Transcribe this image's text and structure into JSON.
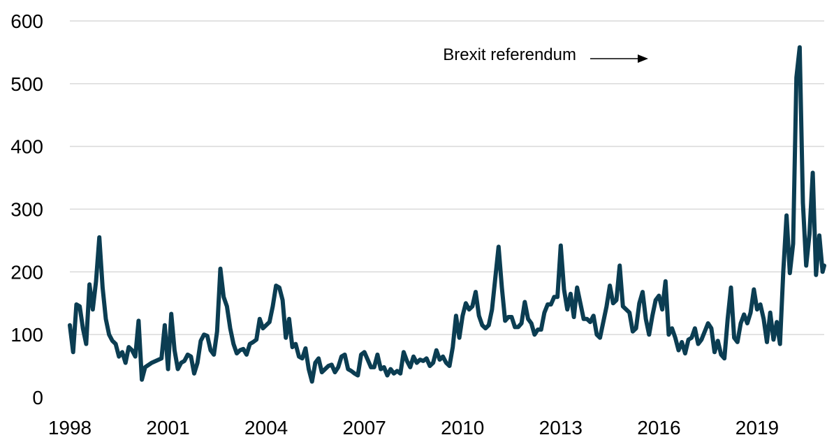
{
  "chart_data": {
    "type": "line",
    "title": "",
    "xlabel": "",
    "ylabel": "",
    "ylim": [
      0,
      600
    ],
    "yticks": [
      0,
      100,
      200,
      300,
      400,
      500,
      600
    ],
    "xlim": [
      1998,
      2021.05
    ],
    "xticks": [
      1998,
      2001,
      2004,
      2007,
      2010,
      2013,
      2016,
      2019
    ],
    "grid": "horizontal",
    "legend": "none",
    "series_color": "#0b3d52",
    "grid_color": "#d9d9d9",
    "annotation": {
      "text": "Brexit referendum",
      "x": 2016.5,
      "y": 545
    },
    "series": [
      {
        "points": [
          [
            1998.0,
            115
          ],
          [
            1998.1,
            72
          ],
          [
            1998.2,
            148
          ],
          [
            1998.3,
            145
          ],
          [
            1998.4,
            110
          ],
          [
            1998.5,
            85
          ],
          [
            1998.6,
            180
          ],
          [
            1998.7,
            140
          ],
          [
            1998.8,
            185
          ],
          [
            1998.9,
            255
          ],
          [
            1999.0,
            175
          ],
          [
            1999.1,
            125
          ],
          [
            1999.2,
            100
          ],
          [
            1999.3,
            90
          ],
          [
            1999.4,
            85
          ],
          [
            1999.5,
            65
          ],
          [
            1999.6,
            72
          ],
          [
            1999.7,
            55
          ],
          [
            1999.8,
            80
          ],
          [
            1999.9,
            75
          ],
          [
            2000.0,
            65
          ],
          [
            2000.1,
            122
          ],
          [
            2000.2,
            28
          ],
          [
            2000.3,
            48
          ],
          [
            2000.5,
            55
          ],
          [
            2000.8,
            62
          ],
          [
            2000.9,
            115
          ],
          [
            2001.0,
            45
          ],
          [
            2001.1,
            133
          ],
          [
            2001.2,
            75
          ],
          [
            2001.3,
            45
          ],
          [
            2001.4,
            55
          ],
          [
            2001.5,
            58
          ],
          [
            2001.6,
            68
          ],
          [
            2001.7,
            65
          ],
          [
            2001.8,
            38
          ],
          [
            2001.9,
            55
          ],
          [
            2002.0,
            90
          ],
          [
            2002.1,
            100
          ],
          [
            2002.2,
            98
          ],
          [
            2002.3,
            75
          ],
          [
            2002.4,
            68
          ],
          [
            2002.5,
            105
          ],
          [
            2002.6,
            205
          ],
          [
            2002.7,
            160
          ],
          [
            2002.8,
            145
          ],
          [
            2002.9,
            110
          ],
          [
            2003.0,
            85
          ],
          [
            2003.1,
            70
          ],
          [
            2003.2,
            75
          ],
          [
            2003.3,
            77
          ],
          [
            2003.4,
            68
          ],
          [
            2003.5,
            85
          ],
          [
            2003.6,
            88
          ],
          [
            2003.7,
            92
          ],
          [
            2003.8,
            125
          ],
          [
            2003.9,
            110
          ],
          [
            2004.0,
            115
          ],
          [
            2004.1,
            120
          ],
          [
            2004.2,
            145
          ],
          [
            2004.3,
            178
          ],
          [
            2004.4,
            175
          ],
          [
            2004.5,
            155
          ],
          [
            2004.6,
            95
          ],
          [
            2004.7,
            125
          ],
          [
            2004.8,
            80
          ],
          [
            2004.9,
            85
          ],
          [
            2005.0,
            65
          ],
          [
            2005.1,
            62
          ],
          [
            2005.2,
            78
          ],
          [
            2005.3,
            45
          ],
          [
            2005.4,
            25
          ],
          [
            2005.5,
            55
          ],
          [
            2005.6,
            62
          ],
          [
            2005.7,
            40
          ],
          [
            2005.8,
            45
          ],
          [
            2005.9,
            50
          ],
          [
            2006.0,
            52
          ],
          [
            2006.1,
            40
          ],
          [
            2006.2,
            48
          ],
          [
            2006.3,
            65
          ],
          [
            2006.4,
            68
          ],
          [
            2006.5,
            45
          ],
          [
            2006.6,
            42
          ],
          [
            2006.7,
            38
          ],
          [
            2006.8,
            35
          ],
          [
            2006.9,
            68
          ],
          [
            2007.0,
            72
          ],
          [
            2007.1,
            60
          ],
          [
            2007.2,
            48
          ],
          [
            2007.3,
            48
          ],
          [
            2007.4,
            68
          ],
          [
            2007.5,
            45
          ],
          [
            2007.6,
            48
          ],
          [
            2007.7,
            35
          ],
          [
            2007.8,
            45
          ],
          [
            2007.9,
            38
          ],
          [
            2008.0,
            42
          ],
          [
            2008.1,
            38
          ],
          [
            2008.2,
            72
          ],
          [
            2008.3,
            58
          ],
          [
            2008.4,
            48
          ],
          [
            2008.5,
            65
          ],
          [
            2008.6,
            55
          ],
          [
            2008.7,
            60
          ],
          [
            2008.8,
            58
          ],
          [
            2008.9,
            62
          ],
          [
            2009.0,
            50
          ],
          [
            2009.1,
            55
          ],
          [
            2009.2,
            75
          ],
          [
            2009.3,
            60
          ],
          [
            2009.4,
            65
          ],
          [
            2009.5,
            55
          ],
          [
            2009.6,
            50
          ],
          [
            2009.7,
            80
          ],
          [
            2009.8,
            130
          ],
          [
            2009.9,
            95
          ],
          [
            2010.0,
            130
          ],
          [
            2010.1,
            150
          ],
          [
            2010.2,
            140
          ],
          [
            2010.3,
            145
          ],
          [
            2010.4,
            168
          ],
          [
            2010.5,
            130
          ],
          [
            2010.6,
            115
          ],
          [
            2010.7,
            110
          ],
          [
            2010.8,
            115
          ],
          [
            2010.9,
            140
          ],
          [
            2011.0,
            190
          ],
          [
            2011.1,
            240
          ],
          [
            2011.2,
            175
          ],
          [
            2011.3,
            122
          ],
          [
            2011.4,
            128
          ],
          [
            2011.5,
            128
          ],
          [
            2011.6,
            112
          ],
          [
            2011.7,
            112
          ],
          [
            2011.8,
            118
          ],
          [
            2011.9,
            152
          ],
          [
            2012.0,
            125
          ],
          [
            2012.1,
            118
          ],
          [
            2012.2,
            100
          ],
          [
            2012.3,
            108
          ],
          [
            2012.4,
            108
          ],
          [
            2012.5,
            135
          ],
          [
            2012.6,
            148
          ],
          [
            2012.7,
            148
          ],
          [
            2012.8,
            160
          ],
          [
            2012.9,
            160
          ],
          [
            2013.0,
            242
          ],
          [
            2013.1,
            172
          ],
          [
            2013.2,
            140
          ],
          [
            2013.3,
            165
          ],
          [
            2013.4,
            128
          ],
          [
            2013.5,
            175
          ],
          [
            2013.6,
            150
          ],
          [
            2013.7,
            125
          ],
          [
            2013.8,
            125
          ],
          [
            2013.9,
            120
          ],
          [
            2014.0,
            130
          ],
          [
            2014.1,
            100
          ],
          [
            2014.2,
            95
          ],
          [
            2014.3,
            120
          ],
          [
            2014.4,
            145
          ],
          [
            2014.5,
            178
          ],
          [
            2014.6,
            150
          ],
          [
            2014.7,
            155
          ],
          [
            2014.8,
            210
          ],
          [
            2014.9,
            145
          ],
          [
            2015.0,
            140
          ],
          [
            2015.1,
            135
          ],
          [
            2015.2,
            105
          ],
          [
            2015.3,
            110
          ],
          [
            2015.4,
            150
          ],
          [
            2015.5,
            168
          ],
          [
            2015.6,
            125
          ],
          [
            2015.7,
            100
          ],
          [
            2015.8,
            130
          ],
          [
            2015.9,
            155
          ],
          [
            2016.0,
            162
          ],
          [
            2016.1,
            140
          ],
          [
            2016.2,
            185
          ],
          [
            2016.3,
            100
          ],
          [
            2016.4,
            110
          ],
          [
            2016.5,
            95
          ],
          [
            2016.6,
            75
          ],
          [
            2016.7,
            88
          ],
          [
            2016.8,
            70
          ],
          [
            2016.9,
            92
          ],
          [
            2017.0,
            95
          ],
          [
            2017.1,
            110
          ],
          [
            2017.2,
            85
          ],
          [
            2017.3,
            92
          ],
          [
            2017.4,
            105
          ],
          [
            2017.5,
            118
          ],
          [
            2017.6,
            110
          ],
          [
            2017.7,
            72
          ],
          [
            2017.8,
            90
          ],
          [
            2017.9,
            68
          ],
          [
            2018.0,
            62
          ],
          [
            2018.1,
            125
          ],
          [
            2018.2,
            175
          ],
          [
            2018.3,
            95
          ],
          [
            2018.4,
            88
          ],
          [
            2018.5,
            118
          ],
          [
            2018.6,
            132
          ],
          [
            2018.7,
            118
          ],
          [
            2018.8,
            135
          ],
          [
            2018.9,
            172
          ],
          [
            2019.0,
            140
          ],
          [
            2019.1,
            148
          ],
          [
            2019.2,
            125
          ],
          [
            2019.3,
            88
          ],
          [
            2019.4,
            135
          ],
          [
            2019.5,
            92
          ],
          [
            2019.6,
            120
          ],
          [
            2019.7,
            85
          ],
          [
            2019.8,
            200
          ],
          [
            2019.9,
            290
          ],
          [
            2020.0,
            198
          ],
          [
            2020.1,
            245
          ],
          [
            2020.2,
            510
          ],
          [
            2020.3,
            558
          ],
          [
            2020.4,
            310
          ],
          [
            2020.5,
            210
          ],
          [
            2020.6,
            260
          ],
          [
            2020.7,
            358
          ],
          [
            2020.8,
            195
          ],
          [
            2020.9,
            258
          ],
          [
            2021.0,
            200
          ],
          [
            2021.05,
            210
          ]
        ]
      }
    ]
  }
}
